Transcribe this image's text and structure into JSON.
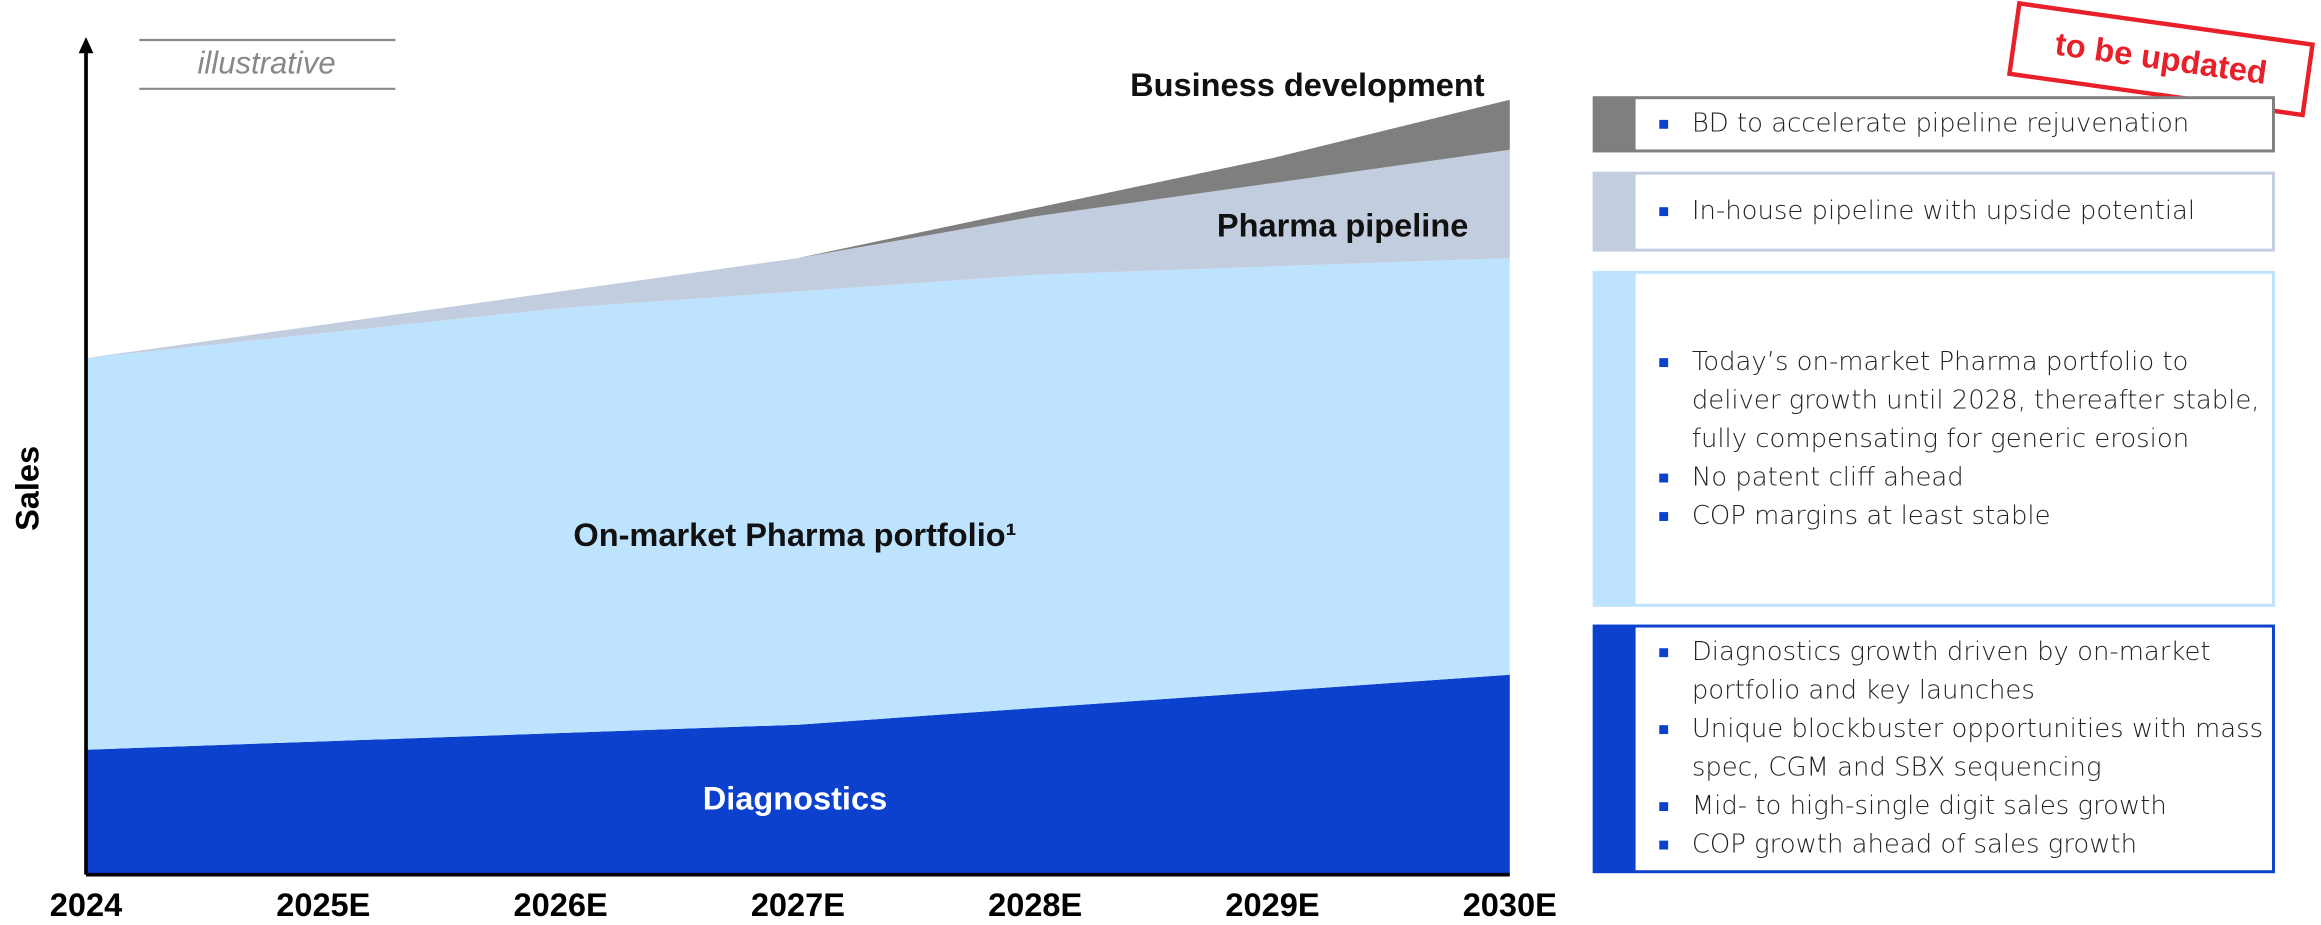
{
  "chart_data": {
    "type": "stacked_area",
    "y_label": "Sales",
    "annotation": "illustrative",
    "stamp": "to be updated",
    "categories": [
      "2024",
      "2025E",
      "2026E",
      "2027E",
      "2028E",
      "2029E",
      "2030E"
    ],
    "ylim": [
      0,
      100
    ],
    "series": [
      {
        "name": "Diagnostics",
        "color": "#0b41cd",
        "values": [
          15,
          16,
          17,
          18,
          20,
          22,
          24
        ]
      },
      {
        "name": "On-market Pharma portfolio¹",
        "color": "#bde3ff",
        "values": [
          47,
          49,
          51,
          52,
          52,
          51,
          50
        ]
      },
      {
        "name": "Pharma pipeline",
        "color": "#c2cee0",
        "values": [
          0,
          1,
          2,
          4,
          7,
          10,
          13
        ]
      },
      {
        "name": "Business development",
        "color": "#7f7f7f",
        "values": [
          0,
          0,
          0,
          0,
          1,
          3,
          6
        ]
      }
    ]
  },
  "panels": [
    {
      "bullets": [
        "BD to accelerate pipeline rejuvenation"
      ]
    },
    {
      "bullets": [
        "In-house pipeline with upside potential"
      ]
    },
    {
      "bullets": [
        "Today’s on-market Pharma portfolio to deliver growth until 2028, thereafter stable, fully compensating for generic erosion",
        "No patent cliff ahead",
        "COP margins at least stable"
      ]
    },
    {
      "bullets": [
        "Diagnostics growth driven by on-market portfolio and key launches",
        "Unique blockbuster opportunities with mass spec, CGM and SBX sequencing",
        "Mid- to high-single digit sales growth",
        "COP growth ahead of sales growth"
      ]
    }
  ]
}
